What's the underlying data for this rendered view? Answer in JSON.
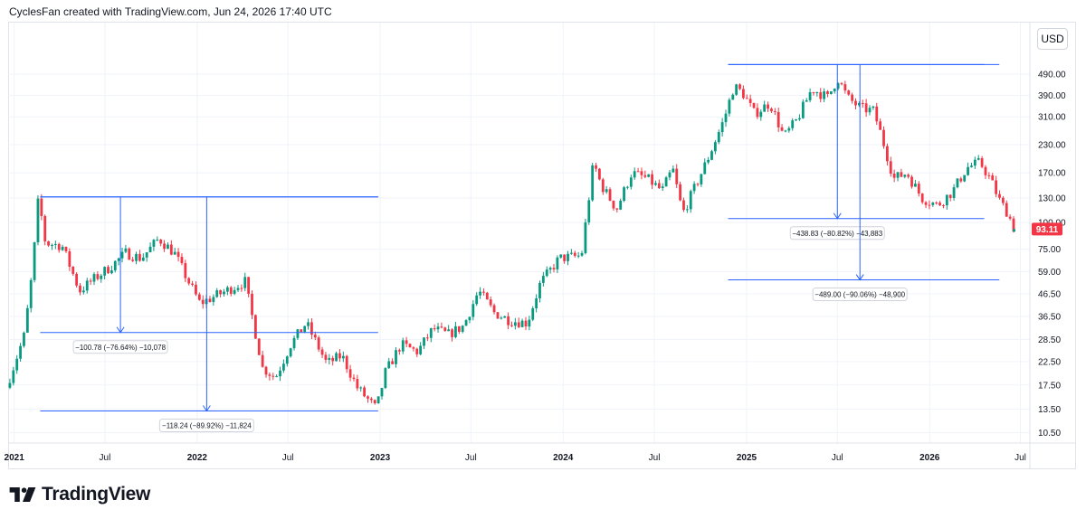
{
  "header": {
    "text": "CyclesFan created with TradingView.com, Jun 24, 2026 17:40 UTC"
  },
  "currency": "USD",
  "brand": {
    "name": "TradingView"
  },
  "colors": {
    "up": "#089981",
    "down": "#f23645",
    "measure": "#2962ff",
    "grid": "#f0f3fa",
    "text": "#131722",
    "price_badge": "#f23645"
  },
  "chart_data": {
    "type": "candlestick",
    "scale": "log",
    "currency": "USD",
    "x_range": [
      "2020-12-20",
      "2026-07-20"
    ],
    "y_ticks": [
      490,
      390,
      310,
      230,
      170,
      130,
      100,
      75,
      59,
      46.5,
      36.5,
      28.5,
      22.5,
      17.5,
      13.5,
      10.5
    ],
    "y_tick_labels": [
      "490.00",
      "390.00",
      "310.00",
      "230.00",
      "170.00",
      "130.00",
      "100.00",
      "75.00",
      "59.00",
      "46.50",
      "36.50",
      "28.50",
      "22.50",
      "17.50",
      "13.50",
      "10.50"
    ],
    "x_ticks": [
      {
        "label": "2021",
        "date": "2021-01-01",
        "major": true
      },
      {
        "label": "Jul",
        "date": "2021-07-01",
        "major": false
      },
      {
        "label": "2022",
        "date": "2022-01-01",
        "major": true
      },
      {
        "label": "Jul",
        "date": "2022-07-01",
        "major": false
      },
      {
        "label": "2023",
        "date": "2023-01-01",
        "major": true
      },
      {
        "label": "Jul",
        "date": "2023-07-01",
        "major": false
      },
      {
        "label": "2024",
        "date": "2024-01-01",
        "major": true
      },
      {
        "label": "Jul",
        "date": "2024-07-01",
        "major": false
      },
      {
        "label": "2025",
        "date": "2025-01-01",
        "major": true
      },
      {
        "label": "Jul",
        "date": "2025-07-01",
        "major": false
      },
      {
        "label": "2026",
        "date": "2026-01-01",
        "major": true
      },
      {
        "label": "Jul",
        "date": "2026-07-01",
        "major": false
      }
    ],
    "last_price": "93.11",
    "price_path": [
      [
        "2020-12-20",
        17
      ],
      [
        "2021-01-25",
        30
      ],
      [
        "2021-02-10",
        60
      ],
      [
        "2021-02-22",
        131
      ],
      [
        "2021-03-08",
        80
      ],
      [
        "2021-04-10",
        78
      ],
      [
        "2021-05-15",
        48
      ],
      [
        "2021-06-15",
        55
      ],
      [
        "2021-07-15",
        62
      ],
      [
        "2021-08-15",
        72
      ],
      [
        "2021-09-15",
        68
      ],
      [
        "2021-10-20",
        84
      ],
      [
        "2021-11-20",
        72
      ],
      [
        "2021-12-20",
        52
      ],
      [
        "2022-01-10",
        42
      ],
      [
        "2022-02-15",
        46
      ],
      [
        "2022-04-10",
        53
      ],
      [
        "2022-05-15",
        21
      ],
      [
        "2022-06-10",
        19
      ],
      [
        "2022-07-10",
        27
      ],
      [
        "2022-08-10",
        34
      ],
      [
        "2022-09-20",
        22
      ],
      [
        "2022-10-20",
        24
      ],
      [
        "2022-11-20",
        17
      ],
      [
        "2022-12-28",
        13.5
      ],
      [
        "2023-01-15",
        20
      ],
      [
        "2023-02-15",
        27
      ],
      [
        "2023-03-20",
        25
      ],
      [
        "2023-04-20",
        32
      ],
      [
        "2023-05-20",
        30
      ],
      [
        "2023-06-20",
        33
      ],
      [
        "2023-07-20",
        48
      ],
      [
        "2023-08-20",
        38
      ],
      [
        "2023-09-20",
        35
      ],
      [
        "2023-10-25",
        34
      ],
      [
        "2023-11-20",
        52
      ],
      [
        "2023-12-28",
        68
      ],
      [
        "2024-02-10",
        70
      ],
      [
        "2024-03-05",
        190
      ],
      [
        "2024-03-20",
        150
      ],
      [
        "2024-04-20",
        115
      ],
      [
        "2024-05-20",
        170
      ],
      [
        "2024-06-20",
        160
      ],
      [
        "2024-07-20",
        140
      ],
      [
        "2024-08-10",
        178
      ],
      [
        "2024-08-30",
        110
      ],
      [
        "2024-09-20",
        140
      ],
      [
        "2024-10-20",
        200
      ],
      [
        "2024-11-20",
        300
      ],
      [
        "2024-12-10",
        430
      ],
      [
        "2024-12-28",
        400
      ],
      [
        "2025-01-20",
        320
      ],
      [
        "2025-02-20",
        360
      ],
      [
        "2025-03-20",
        250
      ],
      [
        "2025-04-15",
        300
      ],
      [
        "2025-05-15",
        420
      ],
      [
        "2025-06-15",
        380
      ],
      [
        "2025-07-05",
        470
      ],
      [
        "2025-07-25",
        380
      ],
      [
        "2025-08-20",
        340
      ],
      [
        "2025-09-15",
        330
      ],
      [
        "2025-10-01",
        250
      ],
      [
        "2025-10-25",
        160
      ],
      [
        "2025-11-20",
        170
      ],
      [
        "2025-12-20",
        130
      ],
      [
        "2026-01-20",
        120
      ],
      [
        "2026-02-20",
        140
      ],
      [
        "2026-03-20",
        180
      ],
      [
        "2026-04-15",
        190
      ],
      [
        "2026-05-05",
        160
      ],
      [
        "2026-05-25",
        125
      ],
      [
        "2026-06-10",
        110
      ],
      [
        "2026-06-22",
        93.11
      ]
    ],
    "measurements": [
      {
        "label": "−100.78 (−76.64%) −10,078",
        "x_start": "2021-02-22",
        "x_end": "2022-12-28",
        "y_top": 131.49,
        "y_end": 30.71,
        "arrow_x": "2021-08-01"
      },
      {
        "label": "−118.24 (−89.92%) −11,824",
        "x_start": "2021-02-22",
        "x_end": "2022-12-28",
        "y_top": 131.49,
        "y_end": 13.25,
        "arrow_x": "2022-01-20"
      },
      {
        "label": "−438.83 (−80.82%) −43,883",
        "x_start": "2024-11-25",
        "x_end": "2026-04-20",
        "y_top": 543,
        "y_end": 104.17,
        "arrow_x": "2025-07-01"
      },
      {
        "label": "−489.00 (−90.06%) −48,900",
        "x_start": "2024-11-25",
        "x_end": "2026-05-20",
        "y_top": 543,
        "y_end": 54,
        "arrow_x": "2025-08-15"
      }
    ]
  }
}
